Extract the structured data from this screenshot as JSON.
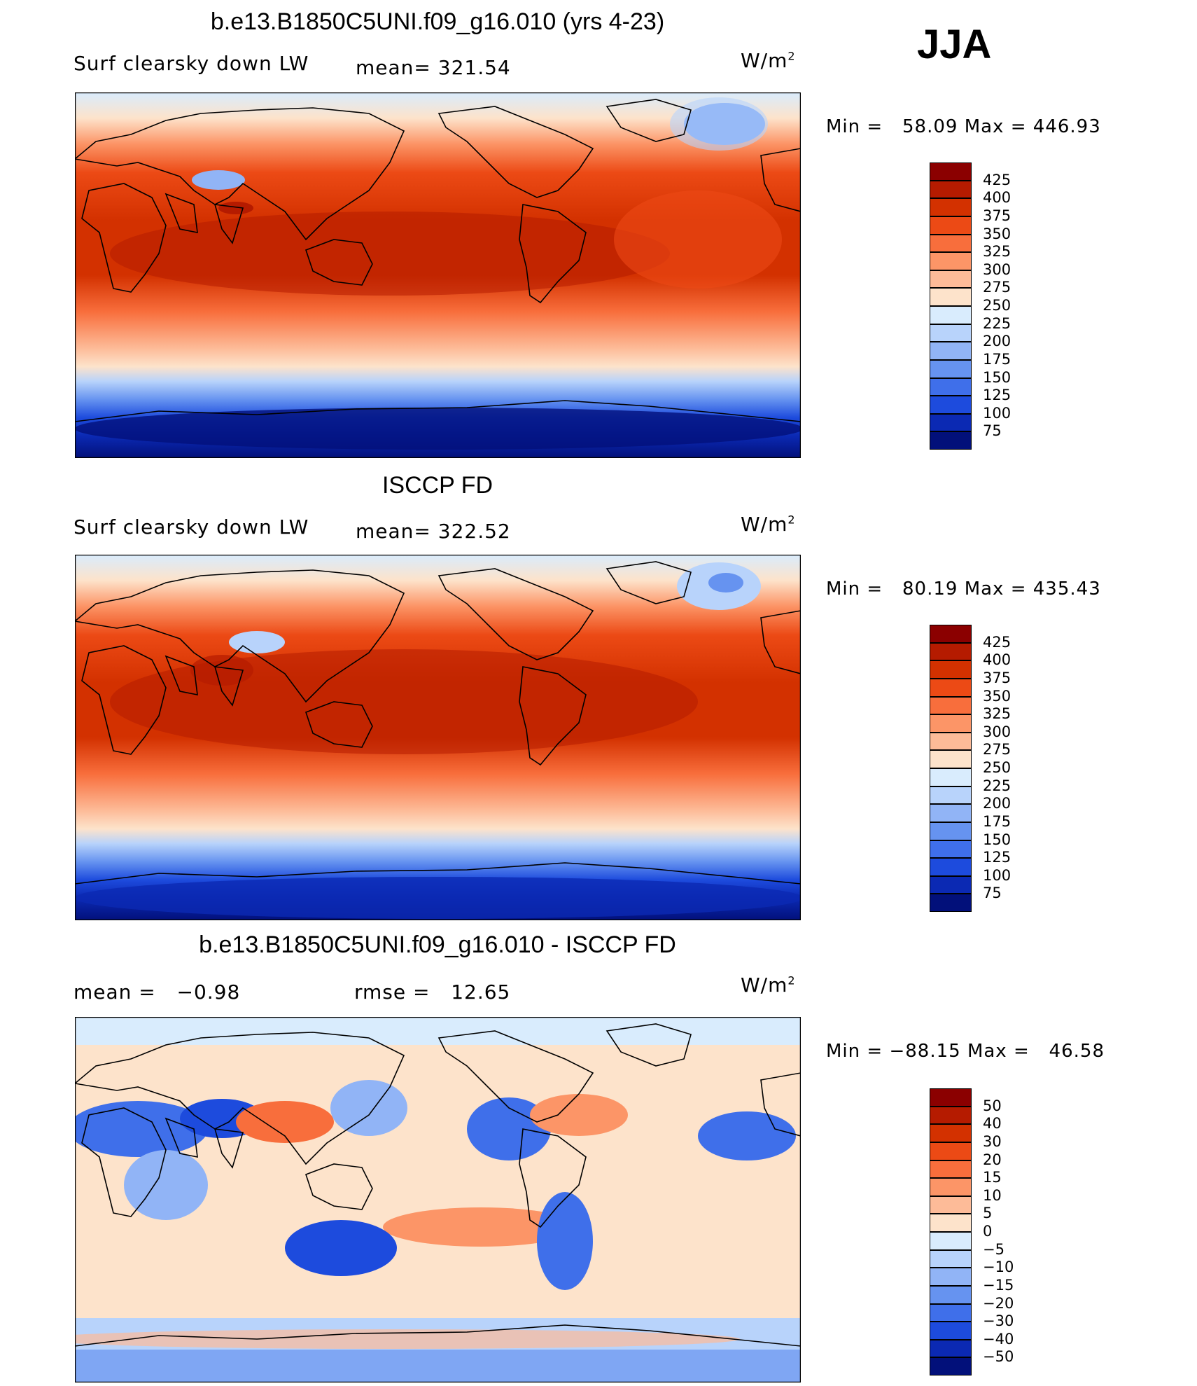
{
  "season": "JJA",
  "units": "W/m",
  "units_sup": "2",
  "panels": [
    {
      "id": "model",
      "title": "b.e13.B1850C5UNI.f09_g16.010 (yrs 4-23)",
      "variable": "Surf clearsky down LW",
      "stat1": "mean= 321.54",
      "stat2": "",
      "min_label": "Min =",
      "min_value": "58.09",
      "max_label": "Max =",
      "max_value": "446.93",
      "colorbar_labels": [
        "425",
        "400",
        "375",
        "350",
        "325",
        "300",
        "275",
        "250",
        "225",
        "200",
        "175",
        "150",
        "125",
        "100",
        "75"
      ],
      "colorbar_colors": [
        "#8b0000",
        "#b51b00",
        "#d33100",
        "#ec4a15",
        "#f86e3c",
        "#fc9567",
        "#fdbb98",
        "#fde3cb",
        "#d9ecfd",
        "#b8d3fb",
        "#91b4f6",
        "#6693f0",
        "#3f6fea",
        "#1d4bdd",
        "#0b29b3",
        "#02107a"
      ]
    },
    {
      "id": "obs",
      "title": "ISCCP FD",
      "variable": "Surf clearsky down LW",
      "stat1": "mean= 322.52",
      "stat2": "",
      "min_label": "Min =",
      "min_value": "80.19",
      "max_label": "Max =",
      "max_value": "435.43",
      "colorbar_labels": [
        "425",
        "400",
        "375",
        "350",
        "325",
        "300",
        "275",
        "250",
        "225",
        "200",
        "175",
        "150",
        "125",
        "100",
        "75"
      ],
      "colorbar_colors": [
        "#8b0000",
        "#b51b00",
        "#d33100",
        "#ec4a15",
        "#f86e3c",
        "#fc9567",
        "#fdbb98",
        "#fde3cb",
        "#d9ecfd",
        "#b8d3fb",
        "#91b4f6",
        "#6693f0",
        "#3f6fea",
        "#1d4bdd",
        "#0b29b3",
        "#02107a"
      ]
    },
    {
      "id": "diff",
      "title": "b.e13.B1850C5UNI.f09_g16.010 - ISCCP FD",
      "variable": "mean =",
      "variable_value": "−0.98",
      "stat1": "rmse =",
      "stat1_value": "12.65",
      "min_label": "Min =",
      "min_value": "−88.15",
      "max_label": "Max =",
      "max_value": "46.58",
      "colorbar_labels": [
        "50",
        "40",
        "30",
        "20",
        "15",
        "10",
        "5",
        "0",
        "−5",
        "−10",
        "−15",
        "−20",
        "−30",
        "−40",
        "−50"
      ],
      "colorbar_colors": [
        "#8b0000",
        "#b51b00",
        "#d33100",
        "#ec4a15",
        "#f86e3c",
        "#fc9567",
        "#fdbb98",
        "#fde3cb",
        "#d9ecfd",
        "#b8d3fb",
        "#91b4f6",
        "#6693f0",
        "#3f6fea",
        "#1d4bdd",
        "#0b29b3",
        "#02107a"
      ]
    }
  ]
}
